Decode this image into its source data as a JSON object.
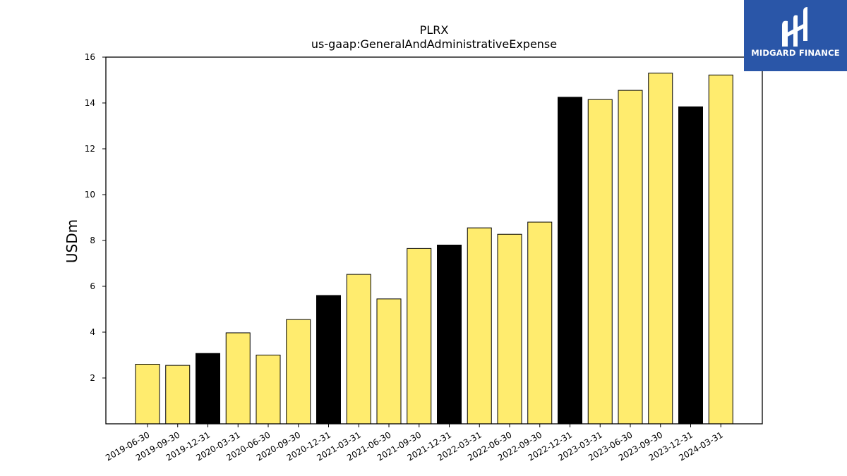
{
  "chart_data": {
    "type": "bar",
    "title": "PLRX",
    "subtitle": "us-gaap:GeneralAndAdministrativeExpense",
    "xlabel": "",
    "ylabel": "USDm",
    "ylim": [
      0,
      16
    ],
    "yticks": [
      2,
      4,
      6,
      8,
      10,
      12,
      14,
      16
    ],
    "grid": false,
    "categories": [
      "2019-06-30",
      "2019-09-30",
      "2019-12-31",
      "2020-03-31",
      "2020-06-30",
      "2020-09-30",
      "2020-12-31",
      "2021-03-31",
      "2021-06-30",
      "2021-09-30",
      "2021-12-31",
      "2022-03-31",
      "2022-06-30",
      "2022-09-30",
      "2022-12-31",
      "2023-03-31",
      "2023-06-30",
      "2023-09-30",
      "2023-12-31",
      "2024-03-31"
    ],
    "values": [
      2.6,
      2.55,
      3.07,
      3.97,
      3.0,
      4.55,
      5.6,
      6.52,
      5.45,
      7.65,
      7.8,
      8.55,
      8.27,
      8.8,
      14.25,
      14.15,
      14.55,
      15.3,
      13.83,
      15.22
    ],
    "bar_colors": [
      "#ffec6e",
      "#ffec6e",
      "#000000",
      "#ffec6e",
      "#ffec6e",
      "#ffec6e",
      "#000000",
      "#ffec6e",
      "#ffec6e",
      "#ffec6e",
      "#000000",
      "#ffec6e",
      "#ffec6e",
      "#ffec6e",
      "#000000",
      "#ffec6e",
      "#ffec6e",
      "#ffec6e",
      "#000000",
      "#ffec6e"
    ]
  },
  "logo": {
    "text": "MIDGARD FINANCE",
    "icon": "midgard-logo-icon",
    "color": "#2a56a8"
  }
}
